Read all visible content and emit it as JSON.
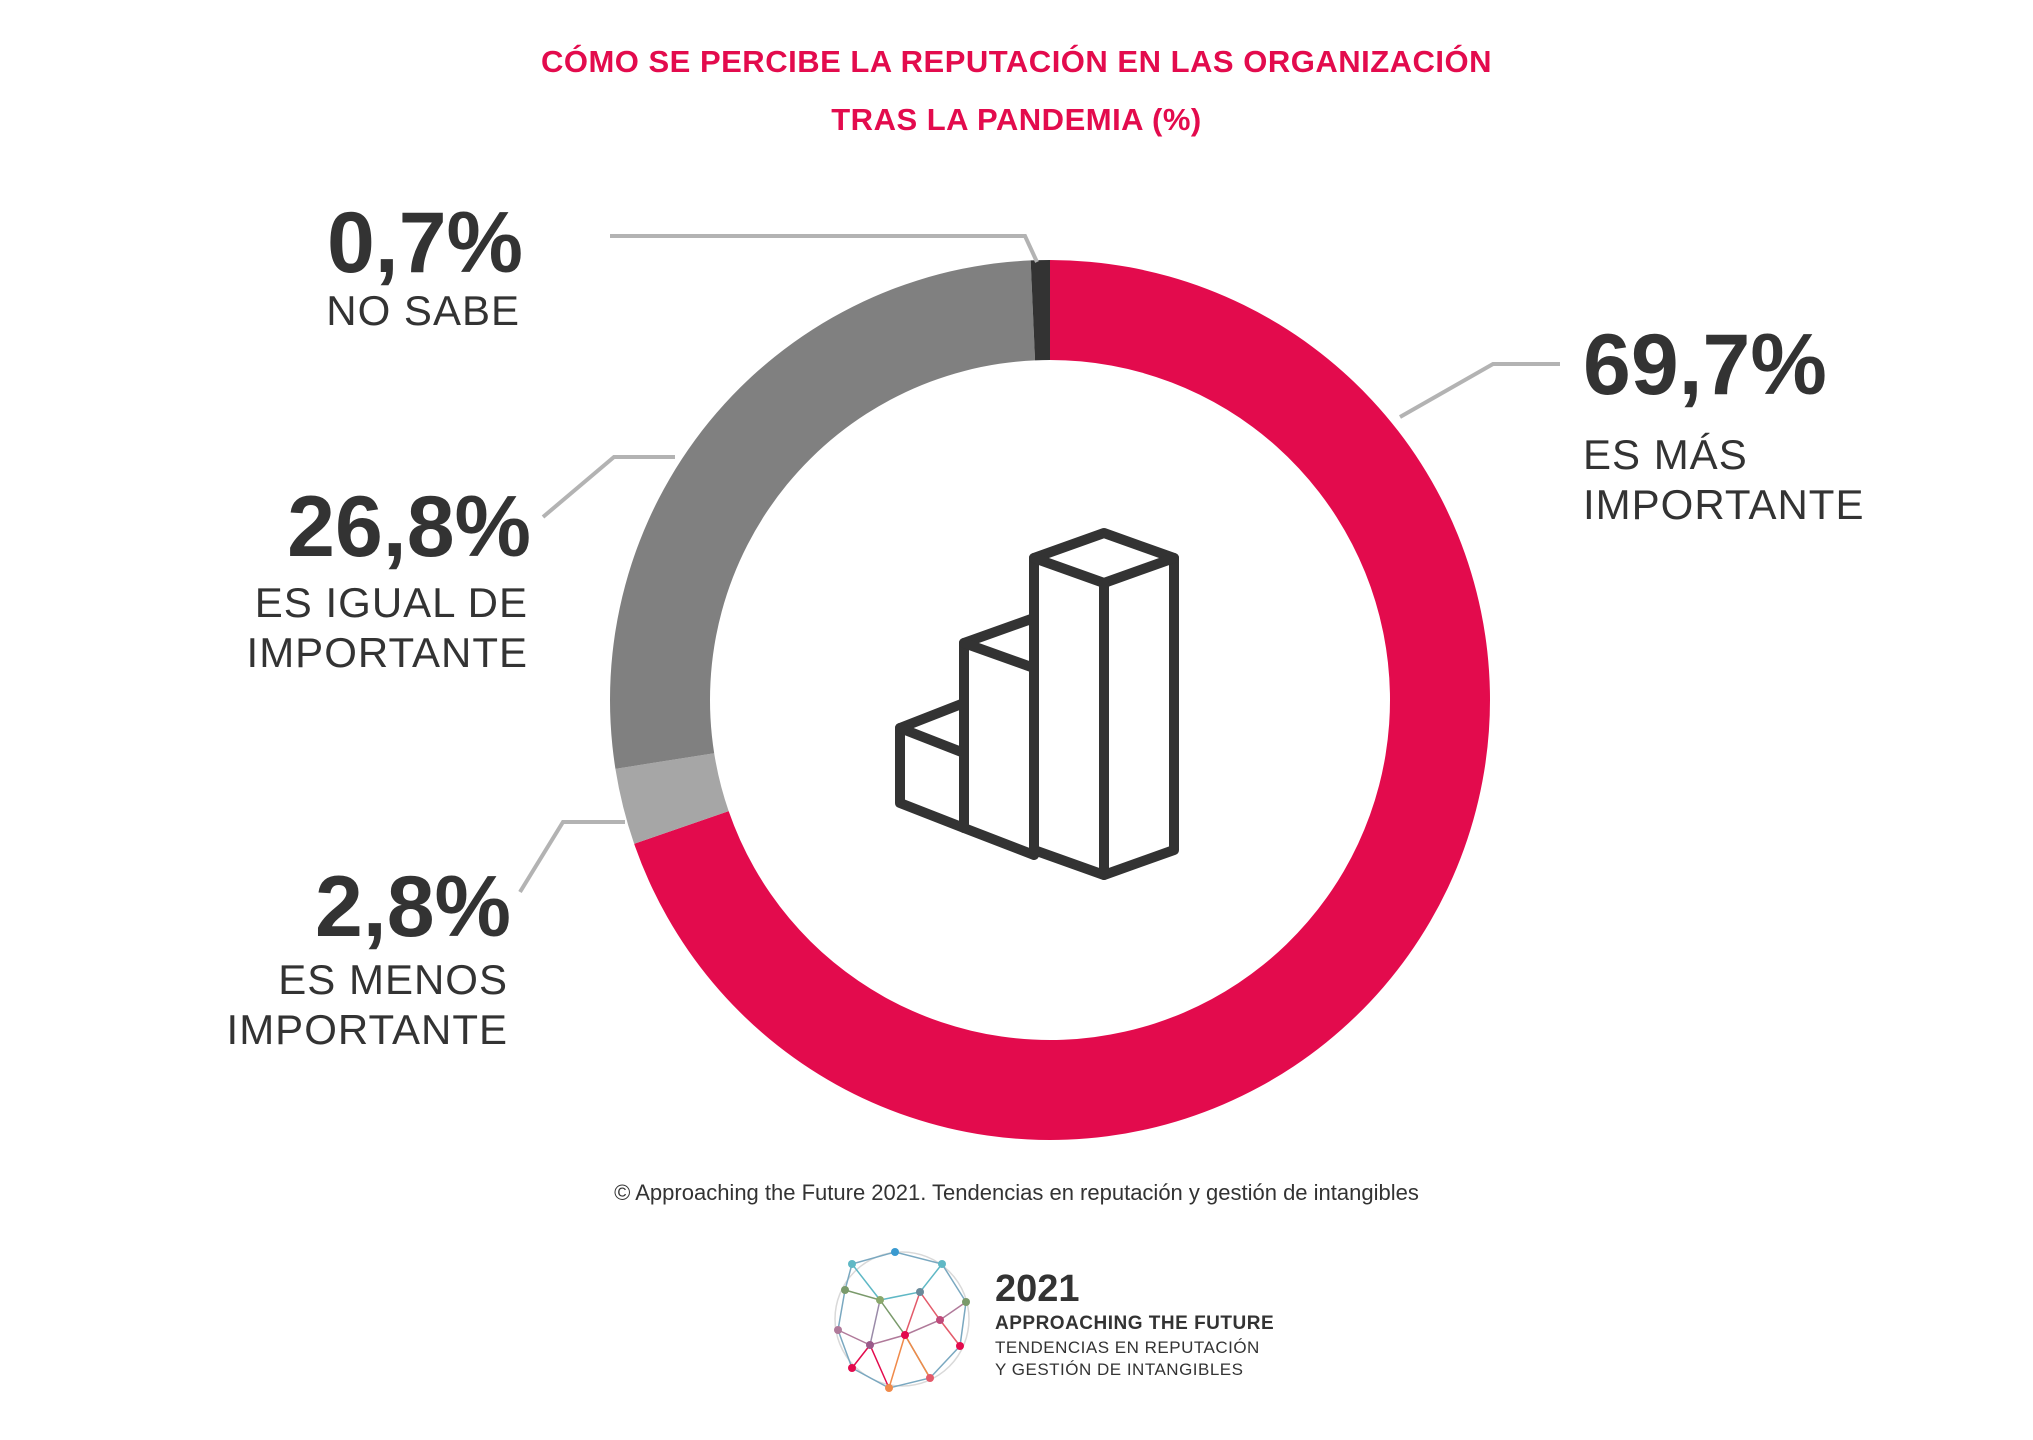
{
  "chart_data": {
    "type": "pie",
    "variant": "donut",
    "title": "CÓMO SE PERCIBE LA REPUTACIÓN EN LAS ORGANIZACIÓN TRAS LA PANDEMIA (%)",
    "title_lines": [
      "CÓMO SE PERCIBE LA REPUTACIÓN EN LAS ORGANIZACIÓN",
      "TRAS LA PANDEMIA (%)"
    ],
    "slices": [
      {
        "label": "ES MÁS IMPORTANTE",
        "label_lines": [
          "ES MÁS",
          "IMPORTANTE"
        ],
        "value": 69.7,
        "display": "69,7%",
        "color": "#e30b4d"
      },
      {
        "label": "ES MENOS IMPORTANTE",
        "label_lines": [
          "ES MENOS",
          "IMPORTANTE"
        ],
        "value": 2.8,
        "display": "2,8%",
        "color": "#a6a6a6"
      },
      {
        "label": "ES IGUAL DE IMPORTANTE",
        "label_lines": [
          "ES IGUAL DE",
          "IMPORTANTE"
        ],
        "value": 26.8,
        "display": "26,8%",
        "color": "#808080"
      },
      {
        "label": "NO SABE",
        "label_lines": [
          "NO SABE"
        ],
        "value": 0.7,
        "display": "0,7%",
        "color": "#333333"
      }
    ],
    "center_icon": "bar-chart-icon"
  },
  "source": "© Approaching the Future 2021. Tendencias en reputación y gestión de intangibles",
  "logo": {
    "year": "2021",
    "line1": "APPROACHING THE FUTURE",
    "line2": "TENDENCIAS EN REPUTACIÓN",
    "line3": "Y GESTIÓN DE INTANGIBLES",
    "icon": "network-globe-icon"
  }
}
